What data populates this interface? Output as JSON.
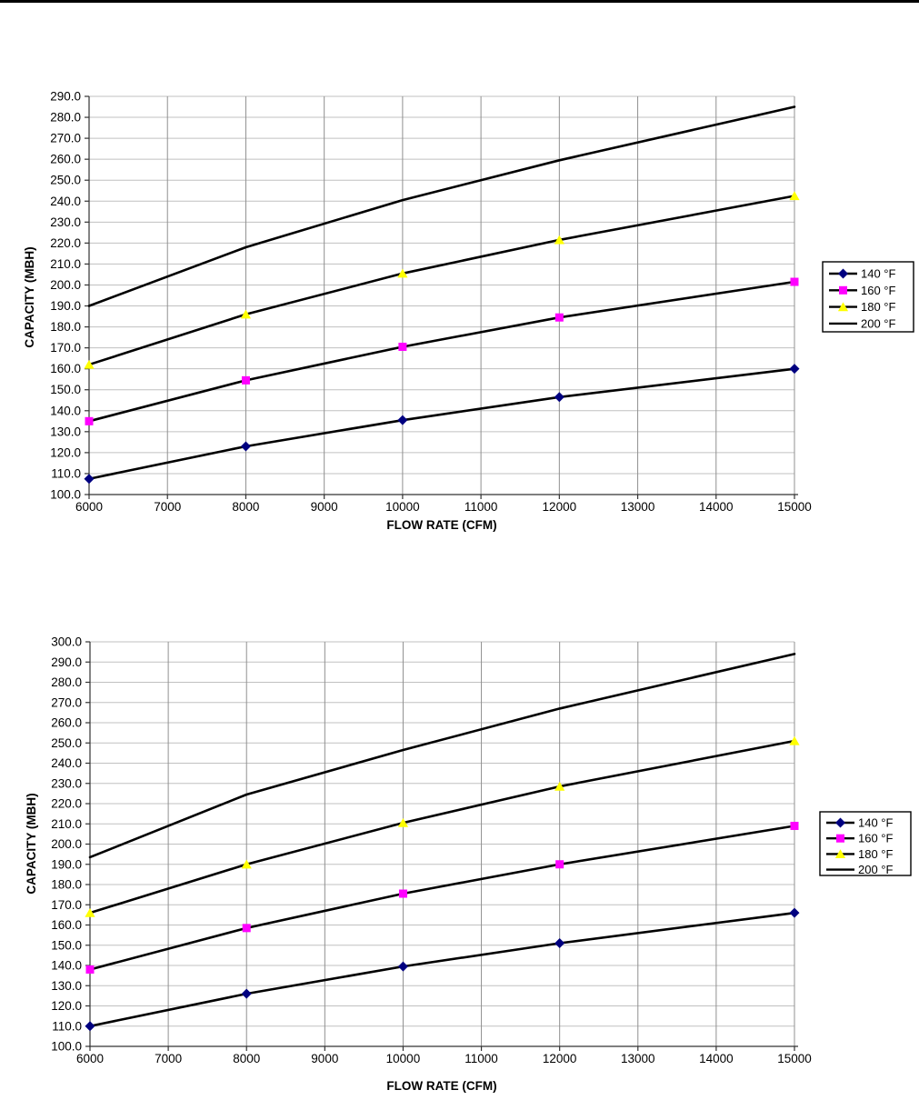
{
  "page": {
    "background": "#ffffff",
    "top_edge_color": "#000000"
  },
  "chart_data": [
    {
      "type": "line",
      "title": "",
      "xlabel": "FLOW RATE (CFM)",
      "ylabel": "CAPACITY (MBH)",
      "x": [
        6000,
        8000,
        10000,
        12000,
        15000
      ],
      "xlim": [
        6000,
        15000
      ],
      "xtick_step": 1000,
      "ylim": [
        100,
        290
      ],
      "ytick_step": 10,
      "ytick_decimals": 1,
      "grid": true,
      "legend_position": "right",
      "legend_entries": [
        "140 °F",
        "160 °F",
        "180 °F",
        "200 °F"
      ],
      "series": [
        {
          "name": "140 °F",
          "marker": "diamond",
          "marker_color": "#000080",
          "line_color": "#000000",
          "values": [
            107.5,
            123.0,
            135.5,
            146.5,
            160.0
          ]
        },
        {
          "name": "160 °F",
          "marker": "square",
          "marker_color": "#ff00ff",
          "line_color": "#000000",
          "values": [
            135.0,
            154.5,
            170.5,
            184.5,
            201.5
          ]
        },
        {
          "name": "180 °F",
          "marker": "triangle",
          "marker_color": "#ffff00",
          "line_color": "#000000",
          "values": [
            162.0,
            186.0,
            205.5,
            221.5,
            242.5
          ]
        },
        {
          "name": "200 °F",
          "marker": "none",
          "marker_color": "#000000",
          "line_color": "#000000",
          "values": [
            190.0,
            218.0,
            240.5,
            259.5,
            285.0
          ]
        }
      ]
    },
    {
      "type": "line",
      "title": "",
      "xlabel": "FLOW RATE (CFM)",
      "ylabel": "CAPACITY (MBH)",
      "x": [
        6000,
        8000,
        10000,
        12000,
        15000
      ],
      "xlim": [
        6000,
        15000
      ],
      "xtick_step": 1000,
      "ylim": [
        100,
        300
      ],
      "ytick_step": 10,
      "ytick_decimals": 1,
      "grid": true,
      "legend_position": "right",
      "legend_entries": [
        "140 °F",
        "160 °F",
        "180 °F",
        "200 °F"
      ],
      "series": [
        {
          "name": "140 °F",
          "marker": "diamond",
          "marker_color": "#000080",
          "line_color": "#000000",
          "values": [
            110.0,
            126.0,
            139.5,
            151.0,
            166.0
          ]
        },
        {
          "name": "160 °F",
          "marker": "square",
          "marker_color": "#ff00ff",
          "line_color": "#000000",
          "values": [
            138.0,
            158.5,
            175.5,
            190.0,
            209.0
          ]
        },
        {
          "name": "180 °F",
          "marker": "triangle",
          "marker_color": "#ffff00",
          "line_color": "#000000",
          "values": [
            166.0,
            190.0,
            210.5,
            228.5,
            251.0
          ]
        },
        {
          "name": "200 °F",
          "marker": "none",
          "marker_color": "#000000",
          "line_color": "#000000",
          "values": [
            193.5,
            224.5,
            246.5,
            267.0,
            294.0
          ]
        }
      ]
    }
  ],
  "style": {
    "h_gridline_color": "#c0c0c0",
    "v_gridline_color": "#909090",
    "axis_color": "#333333",
    "line_width": 2.6,
    "legend_border_color": "#000000",
    "legend_background": "#ffffff"
  }
}
